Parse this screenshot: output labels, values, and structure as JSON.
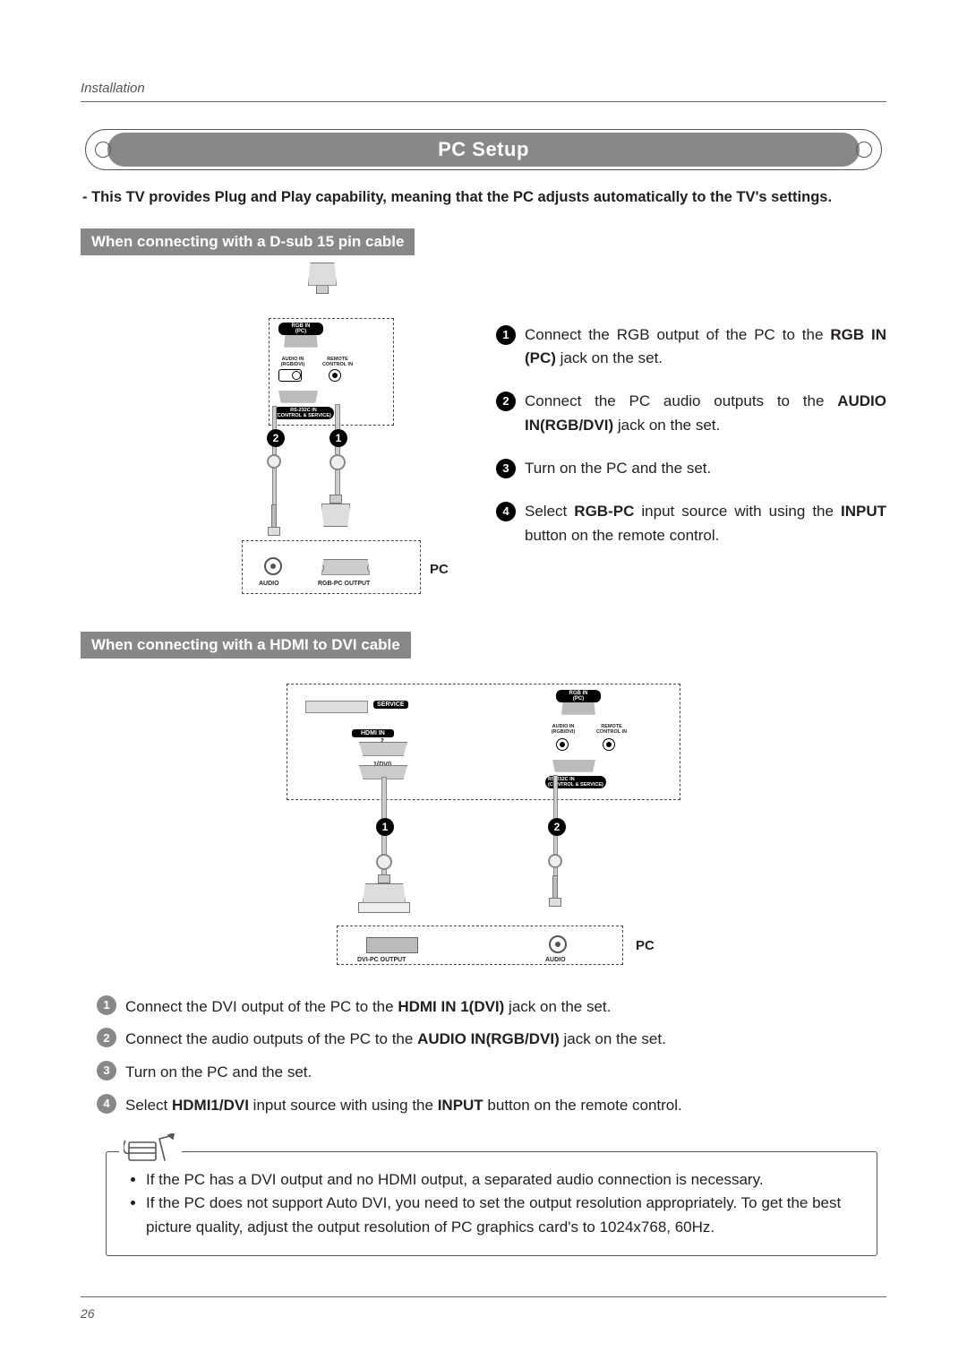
{
  "page": {
    "section": "Installation",
    "number": "26",
    "title": "PC Setup",
    "intro": "-  This TV provides Plug and Play capability, meaning that the PC adjusts automatically to the TV's settings."
  },
  "colors": {
    "header_bg": "#888888",
    "header_fg": "#ffffff",
    "marker_bg": "#000000"
  },
  "section_a": {
    "heading": "When connecting with a D-sub 15 pin cable",
    "diagram": {
      "tv_ports": {
        "rgb_in": "RGB IN\n(PC)",
        "audio_in": "AUDIO IN\n(RGB/DVI)",
        "remote": "REMOTE\nCONTROL IN",
        "rs232": "RS-232C IN\n(CONTROL & SERVICE)"
      },
      "pc_ports": {
        "audio": "AUDIO",
        "rgb_out": "RGB-PC OUTPUT"
      },
      "pc_label": "PC",
      "cable_markers": [
        "1",
        "2"
      ]
    },
    "steps": [
      {
        "n": "1",
        "pre": "Connect the RGB output of the PC to the ",
        "bold": "RGB IN (PC)",
        "post": " jack on the set."
      },
      {
        "n": "2",
        "pre": "Connect the PC audio outputs to the ",
        "bold": "AUDIO IN(RGB/DVI)",
        "post": " jack on the set."
      },
      {
        "n": "3",
        "pre": "Turn on the PC and the set.",
        "bold": "",
        "post": ""
      },
      {
        "n": "4",
        "pre": "Select ",
        "bold": "RGB-PC",
        "mid": " input source with using the ",
        "bold2": "INPUT",
        "post": " button on the remote control."
      }
    ]
  },
  "section_b": {
    "heading": "When connecting with a HDMI to DVI cable",
    "diagram": {
      "tv_ports": {
        "service": "SERVICE",
        "hdmi_in": "HDMI IN",
        "hdmi2": "2",
        "hdmi1": "1(DVI)",
        "rgb_in": "RGB IN\n(PC)",
        "audio_in": "AUDIO IN\n(RGB/DVI)",
        "remote": "REMOTE\nCONTROL IN",
        "rs232": "RS-232C IN\n(CONTROL & SERVICE)"
      },
      "pc_ports": {
        "dvi_out": "DVI-PC OUTPUT",
        "audio": "AUDIO"
      },
      "pc_label": "PC",
      "cable_markers": [
        "1",
        "2"
      ]
    },
    "steps": [
      {
        "n": "1",
        "pre": "Connect the DVI output of the PC to the ",
        "bold": "HDMI IN 1(DVI)",
        "post": " jack on the set."
      },
      {
        "n": "2",
        "pre": "Connect the audio outputs of the PC to the ",
        "bold": "AUDIO IN(RGB/DVI)",
        "post": " jack on the set."
      },
      {
        "n": "3",
        "pre": "Turn on the PC and the set.",
        "bold": "",
        "post": ""
      },
      {
        "n": "4",
        "pre": "Select ",
        "bold": "HDMI1/DVI",
        "mid": " input source with using the ",
        "bold2": "INPUT",
        "post": " button on the remote control."
      }
    ],
    "notes": [
      "If the PC has a DVI output and no HDMI output, a separated audio connection is necessary.",
      "If the PC does not support Auto DVI, you need to set the output resolution appropriately. To get the best picture quality, adjust the output resolution of PC graphics card's to 1024x768, 60Hz."
    ]
  }
}
